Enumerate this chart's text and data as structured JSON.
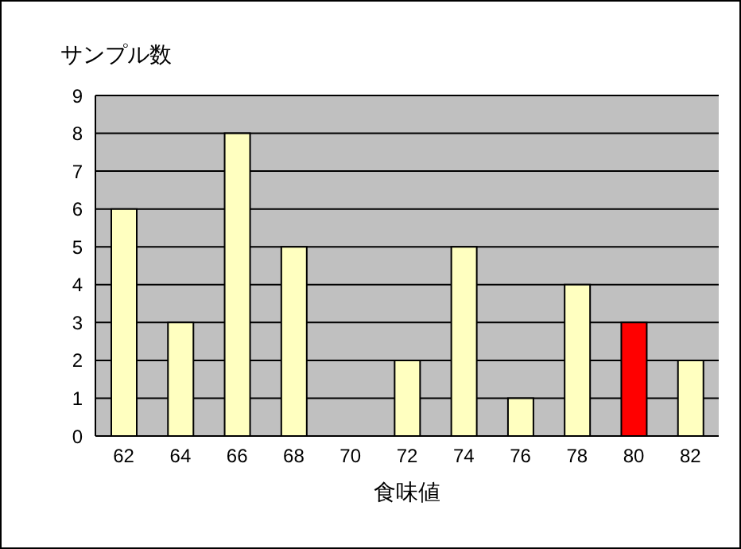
{
  "chart_data": {
    "type": "bar",
    "xlabel": "食味値",
    "ylabel": "サンプル数",
    "categories": [
      "62",
      "64",
      "66",
      "68",
      "70",
      "72",
      "74",
      "76",
      "78",
      "80",
      "82"
    ],
    "values": [
      6,
      3,
      8,
      5,
      0,
      2,
      5,
      1,
      4,
      3,
      2
    ],
    "colors": [
      "#ffffc0",
      "#ffffc0",
      "#ffffc0",
      "#ffffc0",
      "#ffffc0",
      "#ffffc0",
      "#ffffc0",
      "#ffffc0",
      "#ffffc0",
      "#ff0000",
      "#ffffc0"
    ],
    "ylim": [
      0,
      9
    ],
    "yticks": [
      0,
      1,
      2,
      3,
      4,
      5,
      6,
      7,
      8,
      9
    ],
    "grid": "y",
    "legend": false
  }
}
